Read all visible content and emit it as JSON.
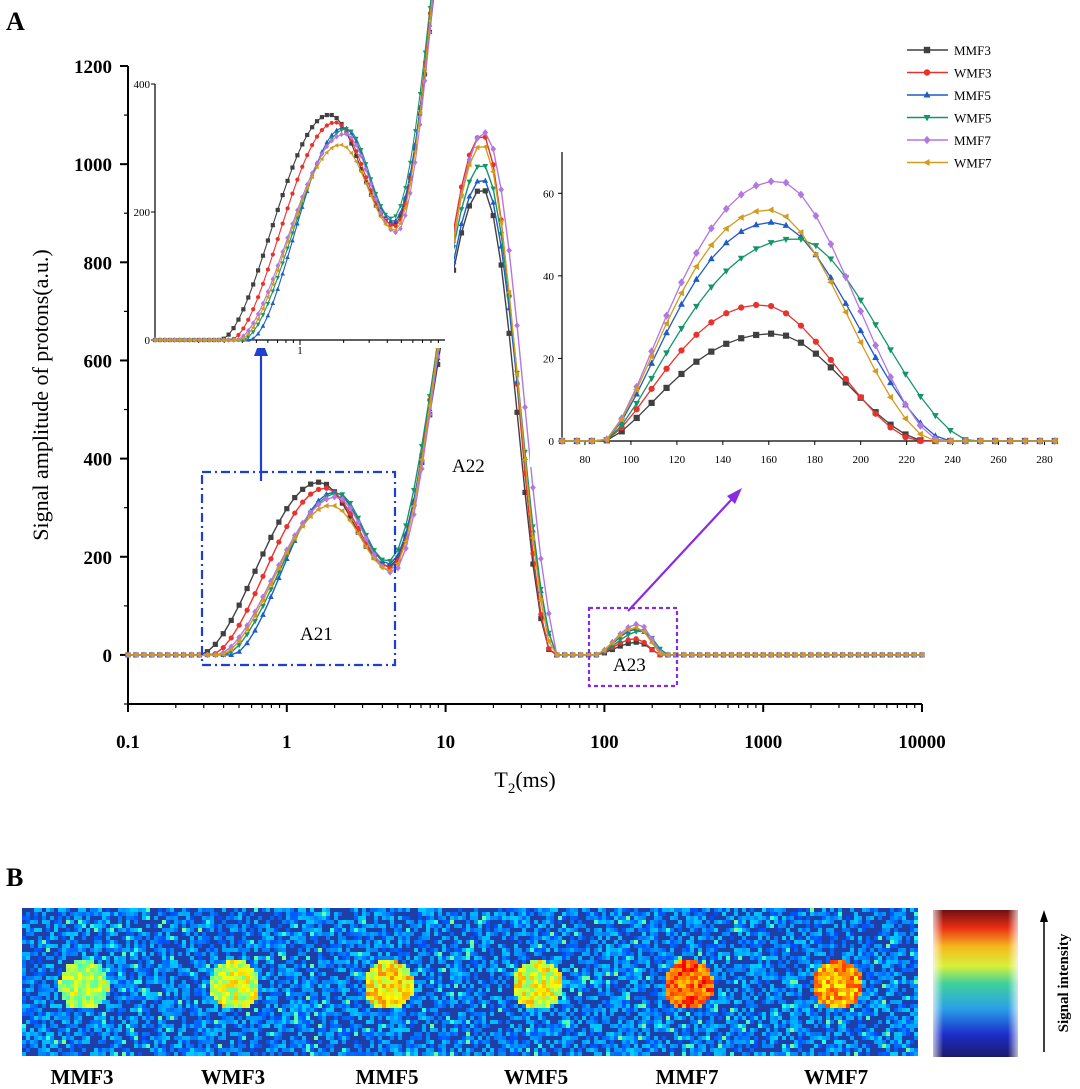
{
  "panel_a_label": "A",
  "panel_b_label": "B",
  "chart_data": [
    {
      "id": "main",
      "type": "line",
      "title": "",
      "xlabel_main": "T",
      "xlabel_sub": "2",
      "xlabel_unit": "(ms)",
      "ylabel": "Signal amplitude of protons(a.u.)",
      "xscale": "log",
      "xlim": [
        0.1,
        10000
      ],
      "ylim": [
        -100,
        1200
      ],
      "xticks": [
        "0.1",
        "1",
        "10",
        "100",
        "1000",
        "10000"
      ],
      "yticks": [
        "0",
        "200",
        "400",
        "600",
        "800",
        "1000",
        "1200"
      ],
      "grid": false,
      "legend": "top-right",
      "annotations": [
        "A21",
        "A22",
        "A23"
      ],
      "series": [
        {
          "name": "MMF3",
          "color": "#404040",
          "marker": "square",
          "a21_start": 0.28,
          "a21_peak": 352,
          "a21_peak_t": 1.6,
          "min_val": 180,
          "min_t": 4.4,
          "a22_peak": 950,
          "a22_peak_t": 17,
          "a22_end": 48,
          "a23_peak": 26,
          "a23_peak_t": 162,
          "a23_end": 228
        },
        {
          "name": "WMF3",
          "color": "#e8322b",
          "marker": "circle",
          "a21_start": 0.33,
          "a21_peak": 340,
          "a21_peak_t": 1.75,
          "min_val": 178,
          "min_t": 4.5,
          "a22_peak": 1060,
          "a22_peak_t": 17,
          "a22_end": 48,
          "a23_peak": 33,
          "a23_peak_t": 157,
          "a23_end": 225
        },
        {
          "name": "MMF5",
          "color": "#1f5cc7",
          "marker": "triangle-up",
          "a21_start": 0.45,
          "a21_peak": 332,
          "a21_peak_t": 2.0,
          "min_val": 185,
          "min_t": 4.4,
          "a22_peak": 970,
          "a22_peak_t": 17,
          "a22_end": 52,
          "a23_peak": 53,
          "a23_peak_t": 162,
          "a23_end": 238
        },
        {
          "name": "WMF5",
          "color": "#16956a",
          "marker": "triangle-down",
          "a21_start": 0.4,
          "a21_peak": 330,
          "a21_peak_t": 2.1,
          "min_val": 190,
          "min_t": 4.3,
          "a22_peak": 1000,
          "a22_peak_t": 17,
          "a22_end": 52,
          "a23_peak": 49,
          "a23_peak_t": 172,
          "a23_end": 248
        },
        {
          "name": "MMF7",
          "color": "#b377e0",
          "marker": "diamond",
          "a21_start": 0.36,
          "a21_peak": 322,
          "a21_peak_t": 2.05,
          "min_val": 168,
          "min_t": 4.6,
          "a22_peak": 1065,
          "a22_peak_t": 17.5,
          "a22_end": 55,
          "a23_peak": 63,
          "a23_peak_t": 164,
          "a23_end": 235
        },
        {
          "name": "WMF7",
          "color": "#d39b1f",
          "marker": "triangle-left",
          "a21_start": 0.38,
          "a21_peak": 305,
          "a21_peak_t": 1.9,
          "min_val": 172,
          "min_t": 4.5,
          "a22_peak": 1040,
          "a22_peak_t": 17,
          "a22_end": 50,
          "a23_peak": 56,
          "a23_peak_t": 160,
          "a23_end": 232
        }
      ]
    },
    {
      "id": "inset_a21",
      "type": "line",
      "xscale": "log",
      "xlim": [
        0.1,
        10
      ],
      "ylim": [
        0,
        400
      ],
      "xticks": [
        "1"
      ],
      "yticks": [
        "0",
        "200",
        "400"
      ]
    },
    {
      "id": "inset_a23",
      "type": "line",
      "xlim": [
        70,
        285
      ],
      "ylim": [
        0,
        70
      ],
      "xticks": [
        "80",
        "100",
        "120",
        "140",
        "160",
        "180",
        "200",
        "220",
        "240",
        "260",
        "280"
      ],
      "yticks": [
        "0",
        "20",
        "40",
        "60"
      ]
    }
  ],
  "panel_b": {
    "samples": [
      {
        "name": "MMF3",
        "intensity": 0.55
      },
      {
        "name": "WMF3",
        "intensity": 0.58
      },
      {
        "name": "MMF5",
        "intensity": 0.64
      },
      {
        "name": "WMF5",
        "intensity": 0.6
      },
      {
        "name": "MMF7",
        "intensity": 0.78
      },
      {
        "name": "WMF7",
        "intensity": 0.72
      }
    ],
    "colorbar_label": "Signal intensity"
  }
}
